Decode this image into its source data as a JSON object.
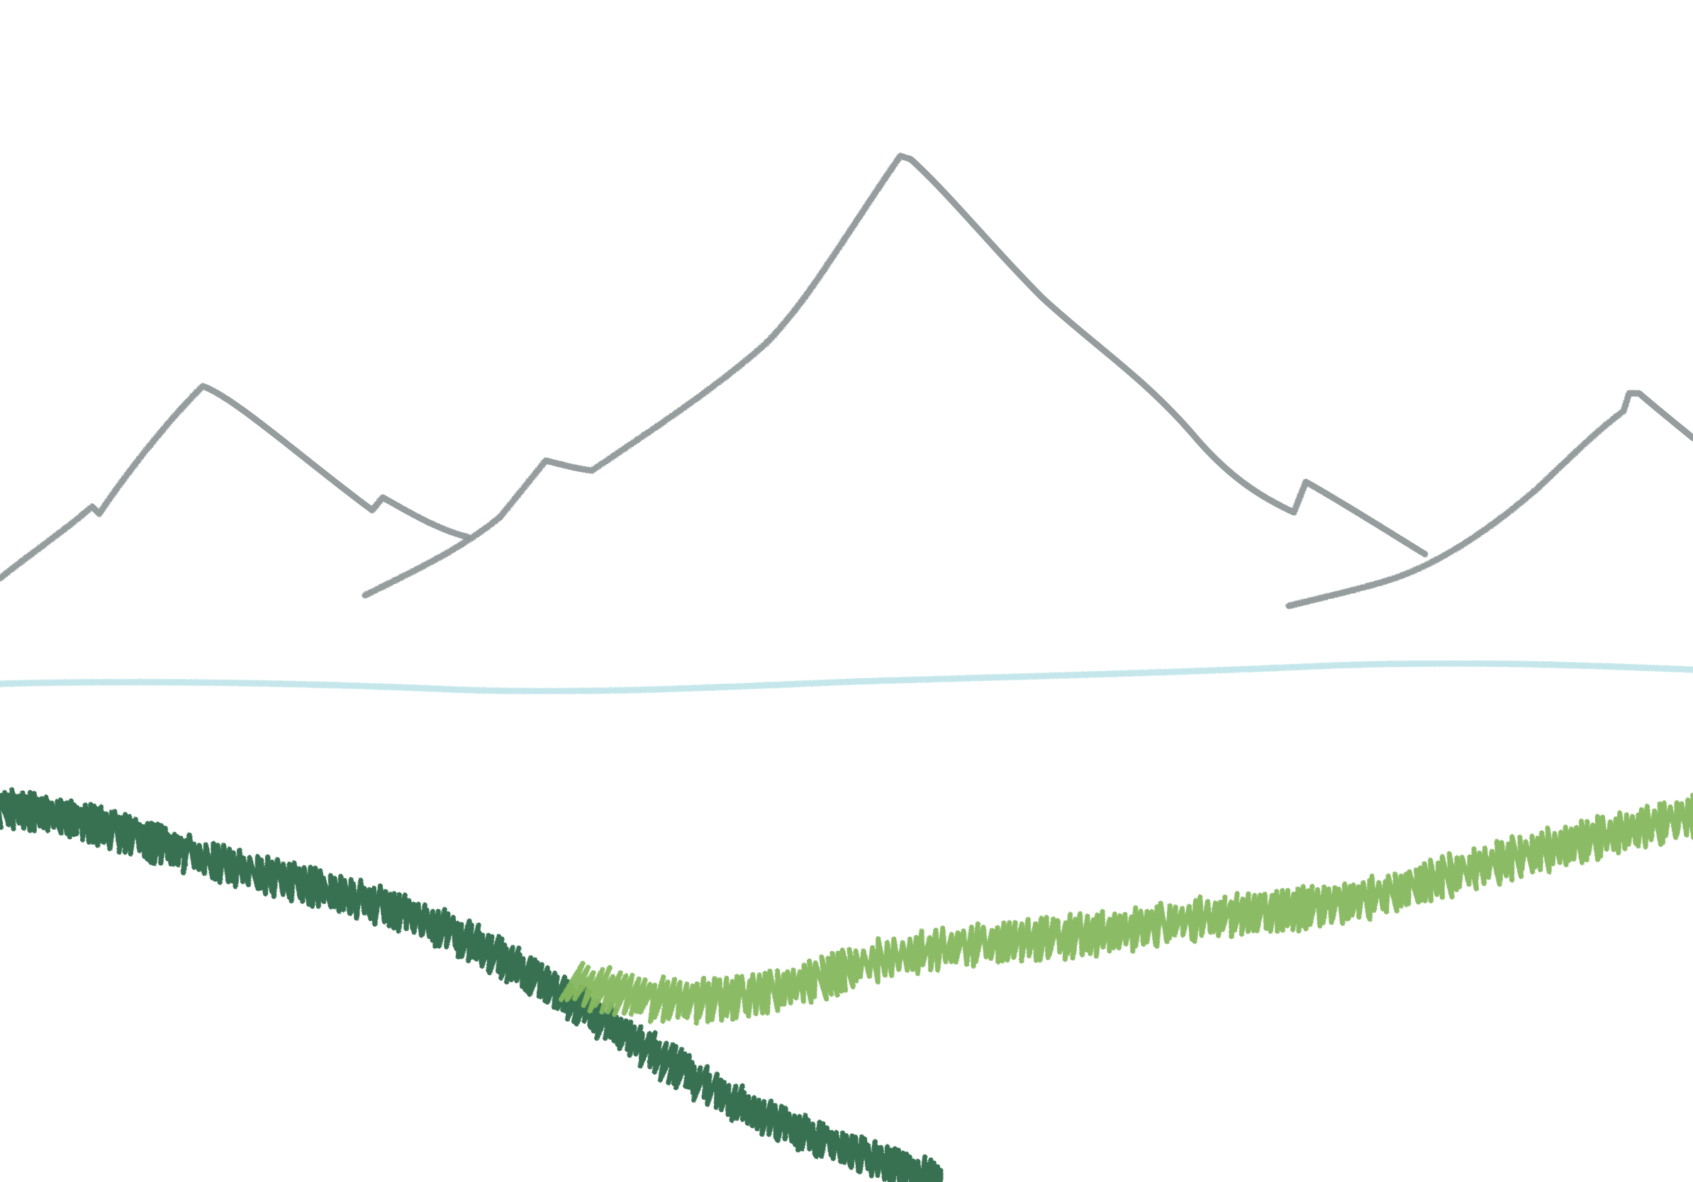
{
  "drawing": {
    "subject": "mountains-lake-grass-sketch",
    "background_color": "#ffffff",
    "colors": {
      "mountain": "#8f9697",
      "water": "#bfe5ea",
      "dark_grass": "#2f6b4b",
      "light_grass": "#86b95f"
    }
  }
}
